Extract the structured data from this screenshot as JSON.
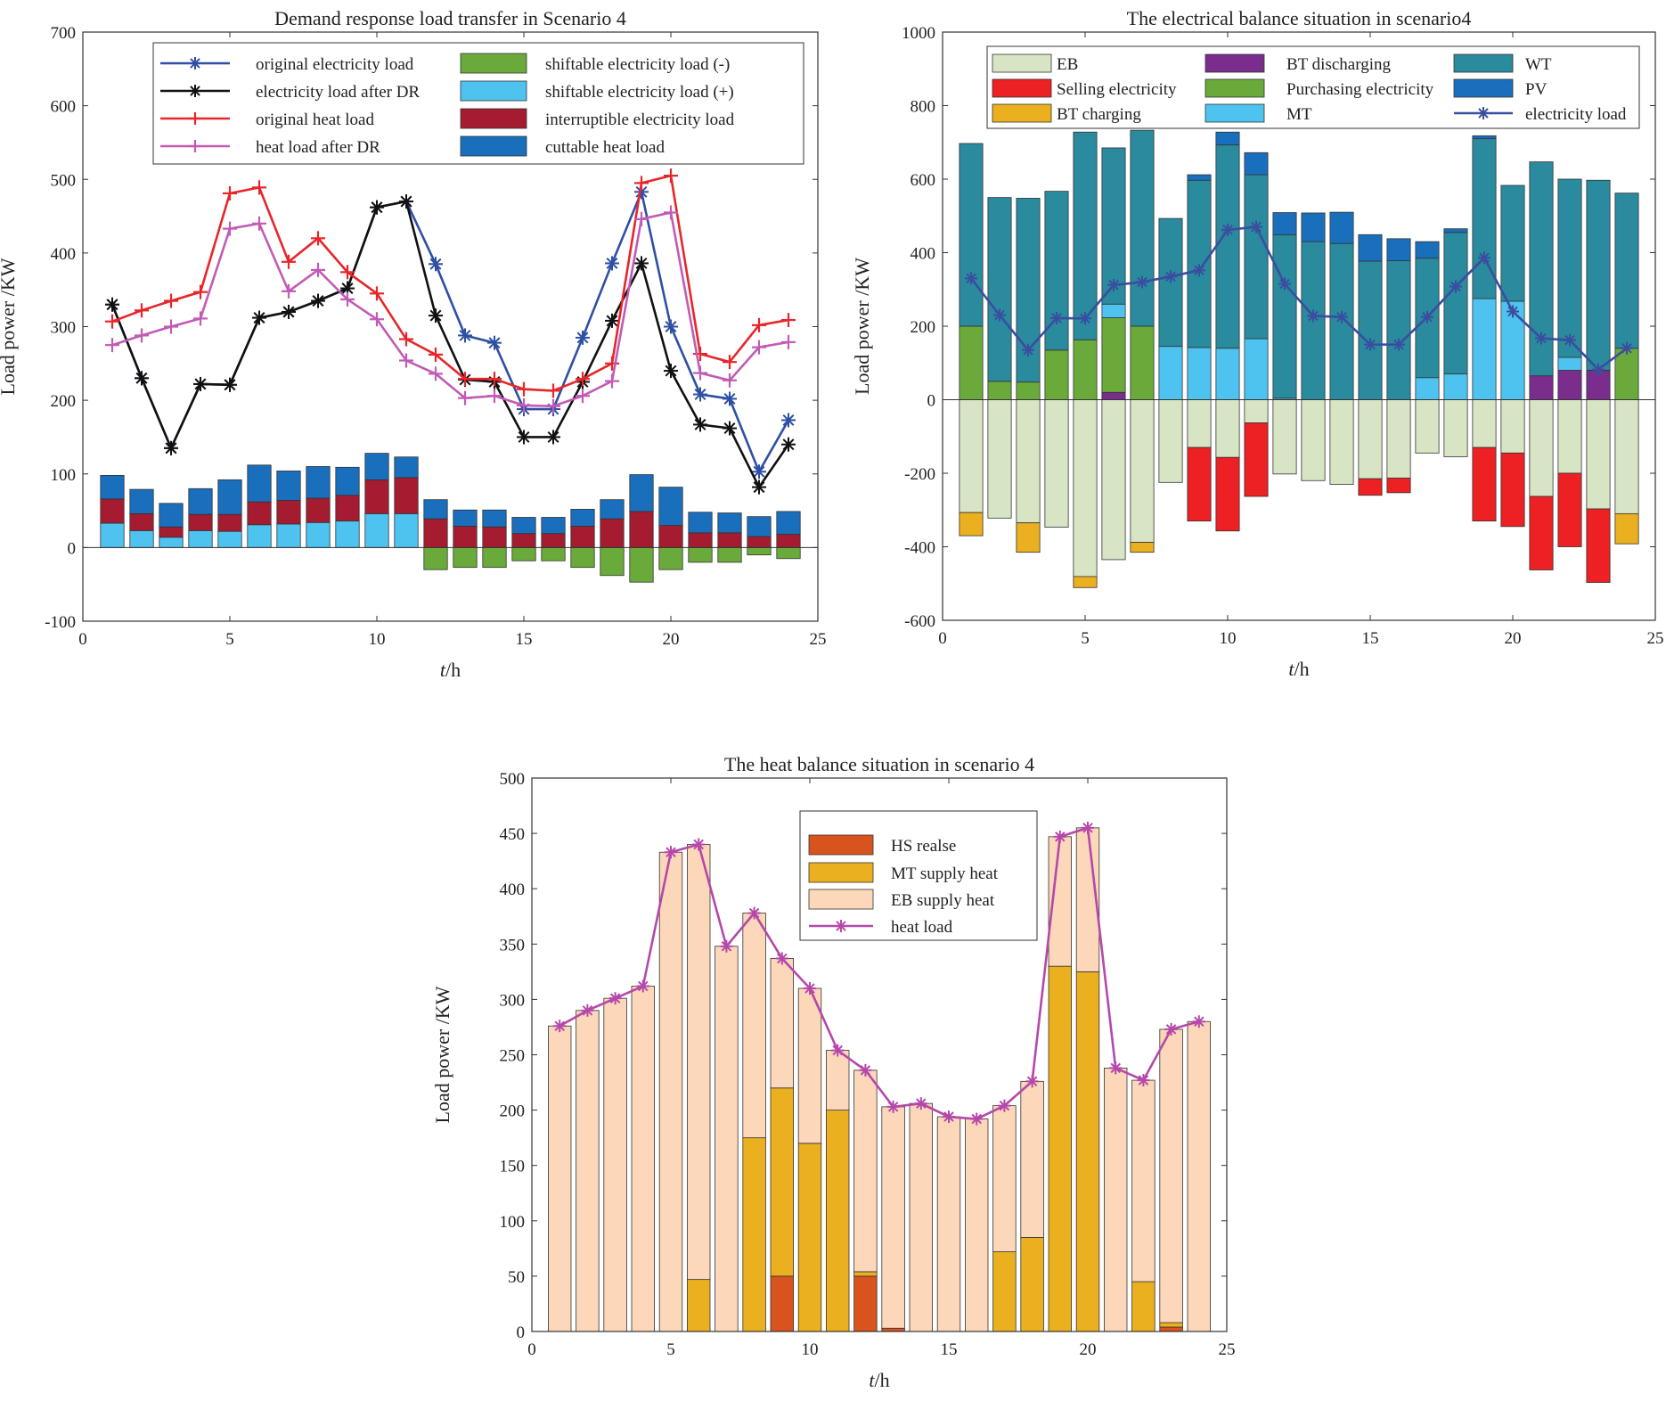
{
  "chart_data": [
    {
      "id": "dr",
      "type": "bar+line",
      "title": "Demand response load transfer in Scenario 4",
      "xlabel_italic": "t",
      "xlabel_rest": "/h",
      "ylabel": "Load power /KW",
      "xlim": [
        0,
        25
      ],
      "ylim": [
        -100,
        700
      ],
      "xticks": [
        0,
        5,
        10,
        15,
        20,
        25
      ],
      "yticks": [
        -100,
        0,
        100,
        200,
        300,
        400,
        500,
        600,
        700
      ],
      "hours": [
        1,
        2,
        3,
        4,
        5,
        6,
        7,
        8,
        9,
        10,
        11,
        12,
        13,
        14,
        15,
        16,
        17,
        18,
        19,
        20,
        21,
        22,
        23,
        24
      ],
      "bar_series": [
        {
          "name": "shiftable electricity load (+)",
          "color": "#4ec3f0",
          "values": [
            33,
            23,
            14,
            23,
            22,
            31,
            32,
            34,
            36,
            46,
            46,
            0,
            0,
            0,
            0,
            0,
            0,
            0,
            0,
            0,
            0,
            0,
            0,
            0
          ]
        },
        {
          "name": "interruptible electricity load",
          "color": "#a51b30",
          "values": [
            33,
            23,
            14,
            22,
            23,
            31,
            32,
            33,
            35,
            46,
            49,
            39,
            29,
            28,
            19,
            19,
            29,
            39,
            49,
            30,
            20,
            20,
            15,
            18
          ]
        },
        {
          "name": "cuttable heat load",
          "color": "#1a6fbd",
          "values": [
            32,
            33,
            32,
            35,
            47,
            50,
            40,
            43,
            38,
            36,
            28,
            26,
            22,
            23,
            22,
            22,
            23,
            26,
            50,
            52,
            28,
            27,
            27,
            31
          ]
        },
        {
          "name": "shiftable electricity load (-)",
          "color": "#6aaa3a",
          "values": [
            0,
            0,
            0,
            0,
            0,
            0,
            0,
            0,
            0,
            0,
            0,
            -30,
            -27,
            -27,
            -18,
            -18,
            -27,
            -38,
            -47,
            -30,
            -20,
            -20,
            -10,
            -15
          ]
        }
      ],
      "line_series": [
        {
          "name": "original electricity load",
          "color": "#2e4fa3",
          "marker": "asterisk",
          "values": [
            330,
            230,
            135,
            222,
            221,
            312,
            320,
            335,
            352,
            462,
            470,
            385,
            288,
            278,
            188,
            188,
            285,
            386,
            483,
            300,
            208,
            202,
            103,
            173
          ]
        },
        {
          "name": "electricity load after DR",
          "color": "#111111",
          "marker": "asterisk",
          "values": [
            330,
            230,
            135,
            222,
            221,
            312,
            320,
            335,
            352,
            462,
            470,
            315,
            228,
            225,
            150,
            150,
            225,
            308,
            386,
            240,
            167,
            162,
            82,
            140
          ]
        },
        {
          "name": "original heat load",
          "color": "#e8262a",
          "marker": "plus",
          "values": [
            307,
            322,
            335,
            347,
            481,
            489,
            388,
            420,
            374,
            345,
            283,
            262,
            229,
            229,
            215,
            213,
            229,
            250,
            495,
            505,
            263,
            252,
            302,
            309
          ]
        },
        {
          "name": "heat load after DR",
          "color": "#c25bb5",
          "marker": "plus",
          "values": [
            275,
            288,
            300,
            311,
            433,
            440,
            348,
            377,
            337,
            310,
            254,
            236,
            203,
            206,
            193,
            192,
            206,
            226,
            446,
            455,
            237,
            227,
            272,
            279
          ]
        }
      ],
      "legend": [
        "original electricity load",
        "electricity load after DR",
        "original heat load",
        "heat load after DR",
        "shiftable electricity load (-)",
        "shiftable electricity load (+)",
        "interruptible electricity load",
        "cuttable heat load"
      ]
    },
    {
      "id": "elec",
      "type": "stacked-bar+line",
      "title": "The electrical balance situation in scenario4",
      "xlabel_italic": "t",
      "xlabel_rest": "/h",
      "ylabel": "Load power /KW",
      "xlim": [
        0,
        25
      ],
      "ylim": [
        -600,
        1000
      ],
      "xticks": [
        0,
        5,
        10,
        15,
        20,
        25
      ],
      "yticks": [
        -600,
        -400,
        -200,
        0,
        200,
        400,
        600,
        800,
        1000
      ],
      "hours": [
        1,
        2,
        3,
        4,
        5,
        6,
        7,
        8,
        9,
        10,
        11,
        12,
        13,
        14,
        15,
        16,
        17,
        18,
        19,
        20,
        21,
        22,
        23,
        24
      ],
      "positive_series": [
        {
          "name": "BT discharging",
          "color": "#7a2d8c",
          "values": [
            0,
            0,
            0,
            0,
            0,
            20,
            0,
            0,
            0,
            0,
            0,
            0,
            0,
            0,
            0,
            0,
            0,
            0,
            0,
            0,
            65,
            80,
            80,
            0
          ]
        },
        {
          "name": "Purchasing electricity",
          "color": "#6aaa3a",
          "values": [
            200,
            50,
            48,
            135,
            163,
            203,
            200,
            0,
            0,
            0,
            0,
            0,
            0,
            0,
            0,
            0,
            0,
            0,
            0,
            0,
            0,
            0,
            0,
            140
          ]
        },
        {
          "name": "MT",
          "color": "#4ec3f0",
          "values": [
            0,
            0,
            0,
            0,
            0,
            37,
            0,
            145,
            142,
            140,
            166,
            4,
            0,
            0,
            0,
            0,
            60,
            70,
            275,
            268,
            0,
            35,
            0,
            0
          ]
        },
        {
          "name": "WT",
          "color": "#2a8a9e",
          "values": [
            497,
            500,
            500,
            432,
            565,
            425,
            533,
            348,
            455,
            553,
            446,
            445,
            430,
            425,
            377,
            378,
            325,
            385,
            435,
            315,
            582,
            485,
            517,
            422
          ]
        },
        {
          "name": "PV",
          "color": "#1a6fbd",
          "values": [
            0,
            0,
            0,
            0,
            0,
            0,
            0,
            0,
            15,
            35,
            60,
            60,
            78,
            85,
            72,
            60,
            45,
            10,
            8,
            0,
            0,
            0,
            0,
            0
          ]
        }
      ],
      "negative_series": [
        {
          "name": "EB",
          "color": "#d8e5c4",
          "values": [
            -307,
            -322,
            -335,
            -347,
            -481,
            -435,
            -388,
            -225,
            -130,
            -157,
            -63,
            -202,
            -220,
            -230,
            -215,
            -213,
            -145,
            -155,
            -130,
            -145,
            -263,
            -200,
            -297,
            -310
          ]
        },
        {
          "name": "Selling electricity",
          "color": "#ed2024",
          "values": [
            0,
            0,
            0,
            0,
            0,
            0,
            0,
            0,
            -200,
            -200,
            -200,
            0,
            0,
            0,
            -45,
            -40,
            0,
            0,
            -200,
            -200,
            -200,
            -200,
            -200,
            0
          ]
        },
        {
          "name": "BT charging",
          "color": "#ebb020",
          "values": [
            -63,
            0,
            -80,
            0,
            -30,
            0,
            -27,
            0,
            0,
            0,
            0,
            0,
            0,
            0,
            0,
            0,
            0,
            0,
            0,
            0,
            0,
            0,
            0,
            -82
          ]
        }
      ],
      "line_series": [
        {
          "name": "electricity load",
          "color": "#3a4ea0",
          "marker": "asterisk",
          "values": [
            330,
            230,
            135,
            222,
            221,
            312,
            320,
            335,
            352,
            462,
            470,
            315,
            228,
            225,
            150,
            150,
            225,
            308,
            386,
            240,
            167,
            162,
            82,
            140
          ]
        }
      ],
      "legend": [
        "EB",
        "Selling electricity",
        "BT charging",
        "BT discharging",
        "Purchasing electricity",
        "MT",
        "WT",
        "PV",
        "electricity load"
      ]
    },
    {
      "id": "heat",
      "type": "stacked-bar+line",
      "title": "The heat balance situation in scenario 4",
      "xlabel_italic": "t",
      "xlabel_rest": "/h",
      "ylabel": "Load power /KW",
      "xlim": [
        0,
        25
      ],
      "ylim": [
        0,
        500
      ],
      "xticks": [
        0,
        5,
        10,
        15,
        20,
        25
      ],
      "yticks": [
        0,
        50,
        100,
        150,
        200,
        250,
        300,
        350,
        400,
        450,
        500
      ],
      "hours": [
        1,
        2,
        3,
        4,
        5,
        6,
        7,
        8,
        9,
        10,
        11,
        12,
        13,
        14,
        15,
        16,
        17,
        18,
        19,
        20,
        21,
        22,
        23,
        24
      ],
      "stack_series": [
        {
          "name": "HS realse",
          "color": "#d9531e",
          "values": [
            0,
            0,
            0,
            0,
            0,
            0,
            0,
            0,
            50,
            0,
            0,
            50,
            3,
            0,
            0,
            0,
            0,
            0,
            0,
            0,
            0,
            0,
            4,
            0
          ]
        },
        {
          "name": "MT supply heat",
          "color": "#ebb020",
          "values": [
            0,
            0,
            0,
            0,
            0,
            47,
            0,
            175,
            170,
            170,
            200,
            4,
            0,
            0,
            0,
            0,
            72,
            85,
            330,
            325,
            0,
            45,
            4,
            0
          ]
        },
        {
          "name": "EB supply heat",
          "color": "#fcd7b9",
          "values": [
            276,
            290,
            301,
            312,
            433,
            393,
            348,
            203,
            117,
            140,
            54,
            182,
            200,
            206,
            194,
            192,
            132,
            141,
            117,
            130,
            238,
            182,
            265,
            280
          ]
        }
      ],
      "line_series": [
        {
          "name": "heat load",
          "color": "#b548aa",
          "marker": "asterisk",
          "values": [
            276,
            290,
            301,
            312,
            433,
            440,
            348,
            378,
            337,
            310,
            254,
            236,
            203,
            206,
            194,
            192,
            204,
            226,
            447,
            455,
            238,
            227,
            273,
            280
          ]
        }
      ],
      "legend": [
        "HS realse",
        "MT supply heat",
        "EB supply heat",
        "heat load"
      ]
    }
  ]
}
